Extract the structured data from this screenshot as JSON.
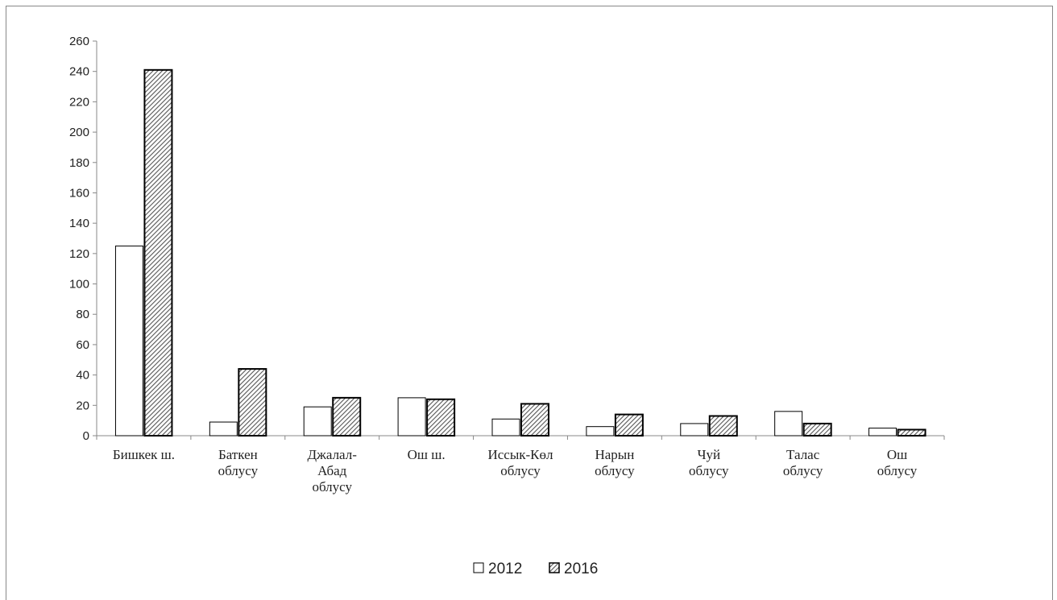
{
  "chart_data": {
    "type": "bar",
    "categories": [
      [
        "Бишкек ш."
      ],
      [
        "Баткен",
        "облусу"
      ],
      [
        "Джалал-",
        "Абад",
        "облусу"
      ],
      [
        "Ош ш."
      ],
      [
        "Иссык-Көл",
        "облусу"
      ],
      [
        "Нарын",
        "облусу"
      ],
      [
        "Чуй",
        "облусу"
      ],
      [
        "Талас",
        "облусу"
      ],
      [
        "Ош",
        "облусу"
      ]
    ],
    "series": [
      {
        "name": "2012",
        "values": [
          125,
          9,
          19,
          25,
          11,
          6,
          8,
          16,
          5
        ],
        "fill": "plain"
      },
      {
        "name": "2016",
        "values": [
          241,
          44,
          25,
          24,
          21,
          14,
          13,
          8,
          4
        ],
        "fill": "hatched"
      }
    ],
    "ylim": [
      0,
      260
    ],
    "yticks": [
      0,
      20,
      40,
      60,
      80,
      100,
      120,
      140,
      160,
      180,
      200,
      220,
      240,
      260
    ],
    "title": "",
    "xlabel": "",
    "ylabel": "",
    "grid": false,
    "legend_position": "bottom"
  },
  "colors": {
    "bar_plain": "#ffffff",
    "bar_stroke": "#000000",
    "hatch": "#555555",
    "axis": "#888888"
  }
}
